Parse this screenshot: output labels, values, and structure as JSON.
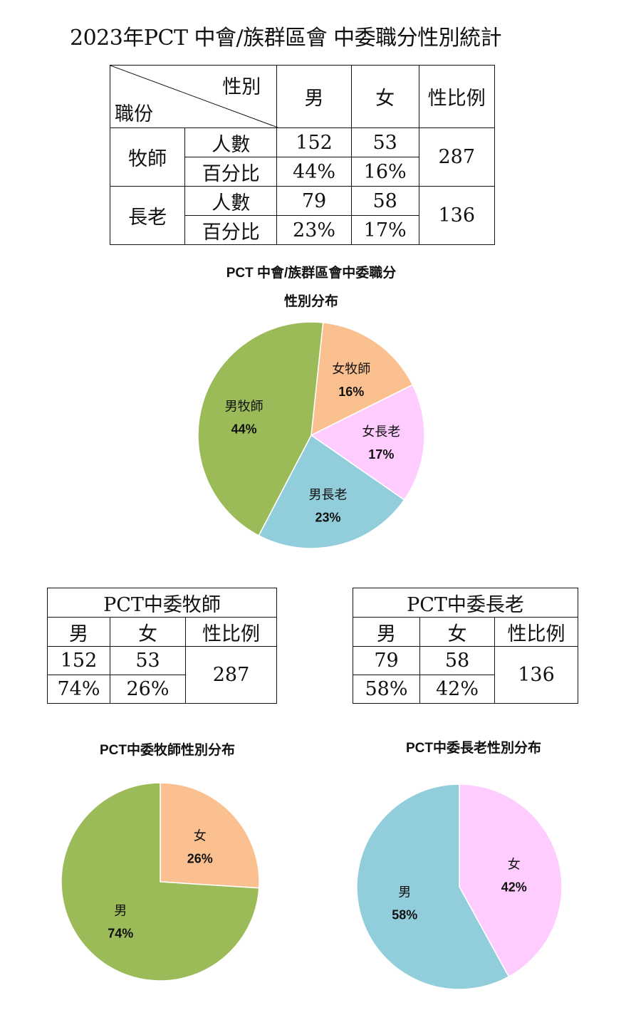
{
  "title": "2023年PCT 中會/族群區會 中委職分性別統計",
  "main_table": {
    "header_gender": "性別",
    "header_role": "職份",
    "col_male": "男",
    "col_female": "女",
    "col_ratio": "性比例",
    "groups": [
      {
        "name": "牧師",
        "count_label": "人數",
        "pct_label": "百分比",
        "male_count": "152",
        "female_count": "53",
        "male_pct": "44%",
        "female_pct": "16%",
        "total": "287"
      },
      {
        "name": "長老",
        "count_label": "人數",
        "pct_label": "百分比",
        "male_count": "79",
        "female_count": "58",
        "male_pct": "23%",
        "female_pct": "17%",
        "total": "136"
      }
    ]
  },
  "pastor_table": {
    "title": "PCT中委牧師",
    "col_male": "男",
    "col_female": "女",
    "col_ratio": "性比例",
    "male_count": "152",
    "female_count": "53",
    "male_pct": "74%",
    "female_pct": "26%",
    "total": "287"
  },
  "elder_table": {
    "title": "PCT中委長老",
    "col_male": "男",
    "col_female": "女",
    "col_ratio": "性比例",
    "male_count": "79",
    "female_count": "58",
    "male_pct": "58%",
    "female_pct": "42%",
    "total": "136"
  },
  "colors": {
    "male_pastor": "#9bbb59",
    "female_pastor": "#fac090",
    "female_elder": "#ffccff",
    "male_elder": "#92cddc"
  },
  "chart_data": [
    {
      "type": "pie",
      "title": "PCT 中會/族群區會中委職分",
      "subtitle": "性別分布",
      "slices": [
        {
          "label": "女牧師",
          "value": 16,
          "value_label": "16%",
          "color": "#fac090"
        },
        {
          "label": "女長老",
          "value": 17,
          "value_label": "17%",
          "color": "#ffccff"
        },
        {
          "label": "男長老",
          "value": 23,
          "value_label": "23%",
          "color": "#92cddc"
        },
        {
          "label": "男牧師",
          "value": 44,
          "value_label": "44%",
          "color": "#9bbb59"
        }
      ]
    },
    {
      "type": "pie",
      "title": "PCT中委牧師性別分布",
      "slices": [
        {
          "label": "女",
          "value": 26,
          "value_label": "26%",
          "color": "#fac090"
        },
        {
          "label": "男",
          "value": 74,
          "value_label": "74%",
          "color": "#9bbb59"
        }
      ]
    },
    {
      "type": "pie",
      "title": "PCT中委長老性別分布",
      "slices": [
        {
          "label": "女",
          "value": 42,
          "value_label": "42%",
          "color": "#ffccff"
        },
        {
          "label": "男",
          "value": 58,
          "value_label": "58%",
          "color": "#92cddc"
        }
      ]
    }
  ]
}
